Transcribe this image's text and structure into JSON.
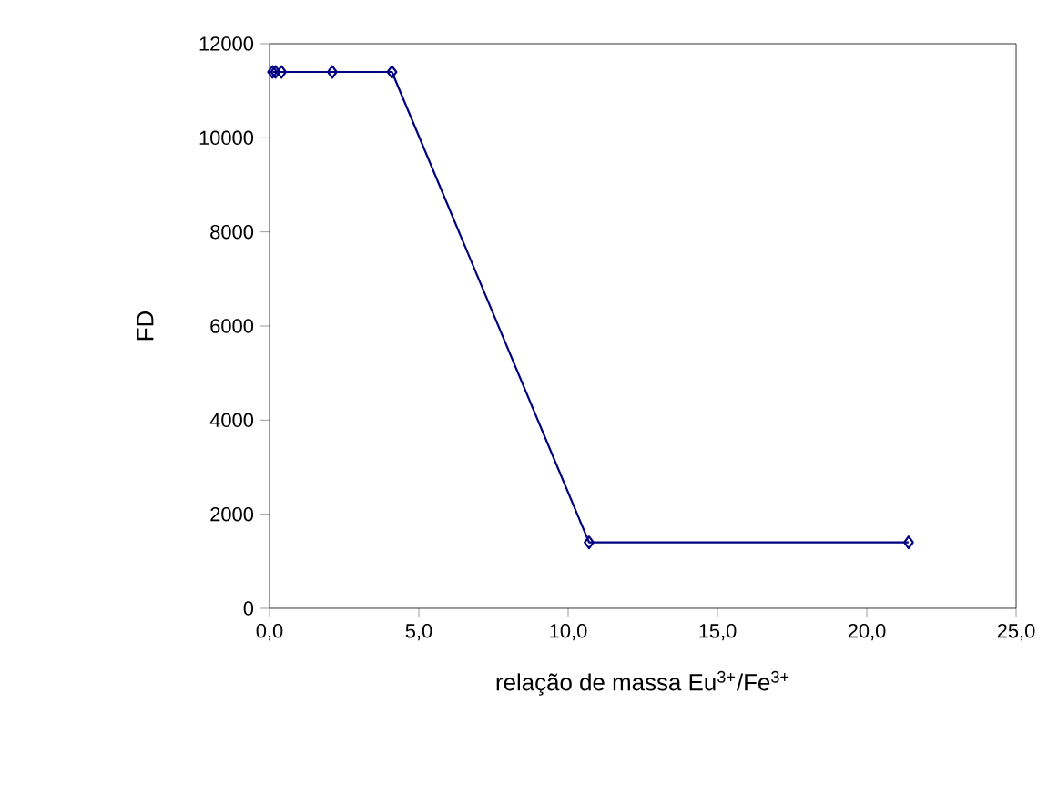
{
  "chart_data": {
    "type": "line",
    "xlabel": "relação de massa Eu$^{3+}$/Fe$^{3+}$",
    "ylabel": "FD",
    "x": [
      0.1,
      0.2,
      0.4,
      2.1,
      4.1,
      10.7,
      21.4
    ],
    "series": [
      {
        "color": "#000080",
        "values": [
          11400,
          11400,
          11400,
          11400,
          11400,
          1400,
          1400
        ]
      }
    ],
    "xlim": [
      0,
      25
    ],
    "ylim": [
      0,
      12000
    ],
    "xticks": [
      {
        "value": 0,
        "label": "0,0"
      },
      {
        "value": 5,
        "label": "5,0"
      },
      {
        "value": 10,
        "label": "10,0"
      },
      {
        "value": 15,
        "label": "15,0"
      },
      {
        "value": 20,
        "label": "20,0"
      },
      {
        "value": 25,
        "label": "25,0"
      }
    ],
    "yticks": [
      0,
      2000,
      4000,
      6000,
      8000,
      10000,
      12000
    ],
    "marker": "diamond",
    "line_style": "solid"
  }
}
